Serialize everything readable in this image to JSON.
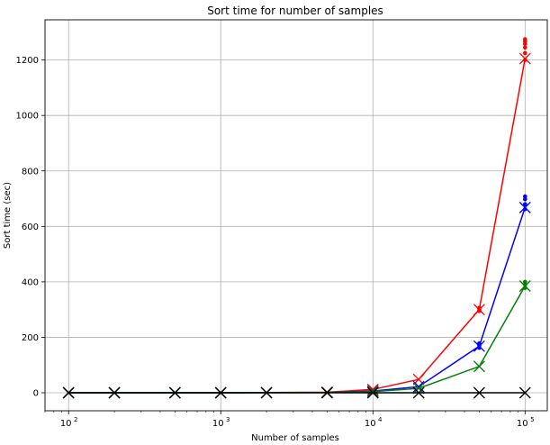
{
  "chart_data": {
    "type": "line",
    "title": "Sort time for number of samples",
    "xlabel": "Number of samples",
    "ylabel": "Sort time (sec)",
    "xscale": "log",
    "xlim": [
      70,
      140000
    ],
    "ylim": [
      -65,
      1345
    ],
    "grid": true,
    "x": [
      100,
      200,
      500,
      1000,
      2000,
      5000,
      10000,
      20000,
      50000,
      100000
    ],
    "x_ticks": [
      {
        "value": 100,
        "base": "10",
        "exp": "2"
      },
      {
        "value": 1000,
        "base": "10",
        "exp": "3"
      },
      {
        "value": 10000,
        "base": "10",
        "exp": "4"
      },
      {
        "value": 100000,
        "base": "10",
        "exp": "5"
      }
    ],
    "y_ticks": [
      0,
      200,
      400,
      600,
      800,
      1000,
      1200
    ],
    "series": [
      {
        "color": "#ff0000",
        "values": [
          0,
          0,
          0,
          0,
          0.5,
          2,
          12,
          48,
          300,
          1205
        ],
        "scatter": [
          {
            "x": 50000,
            "y": [
              295,
              298,
              302,
              306
            ]
          },
          {
            "x": 100000,
            "y": [
              1200,
              1225,
              1245,
              1258,
              1268,
              1275
            ]
          }
        ]
      },
      {
        "color": "#0000ff",
        "values": [
          0,
          0,
          0,
          0,
          0.3,
          1,
          6,
          22,
          168,
          668
        ],
        "scatter": [
          {
            "x": 50000,
            "y": [
              162,
              170,
              178
            ]
          },
          {
            "x": 100000,
            "y": [
              662,
              680,
              698,
              708
            ]
          }
        ]
      },
      {
        "color": "#008000",
        "values": [
          0,
          0,
          0,
          0,
          0.2,
          0.5,
          4,
          16,
          95,
          385
        ],
        "scatter": [
          {
            "x": 100000,
            "y": [
              378,
              390,
              400
            ]
          }
        ]
      },
      {
        "color": "#000000",
        "values": [
          0,
          0,
          0,
          0,
          0,
          0,
          0,
          0,
          0,
          0
        ]
      }
    ]
  }
}
